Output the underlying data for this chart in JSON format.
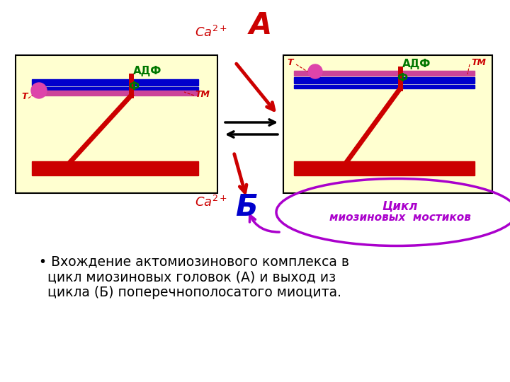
{
  "bg_color": "#ffffff",
  "panel_bg": "#ffffd0",
  "panel_border": "#000000",
  "adf_text": "АДФ",
  "phi_text": "Ф",
  "tm_text": "ТМ",
  "t_text": "Т",
  "caption_line1": "• Вхождение актомиозинового комплекса в",
  "caption_line2": "  цикл миозиновых головок (А) и выход из",
  "caption_line3": "  цикла (Б) поперечнополосатого миоцита.",
  "cycle_line1": "Цикл",
  "cycle_line2": "миозиновых  мостиков"
}
